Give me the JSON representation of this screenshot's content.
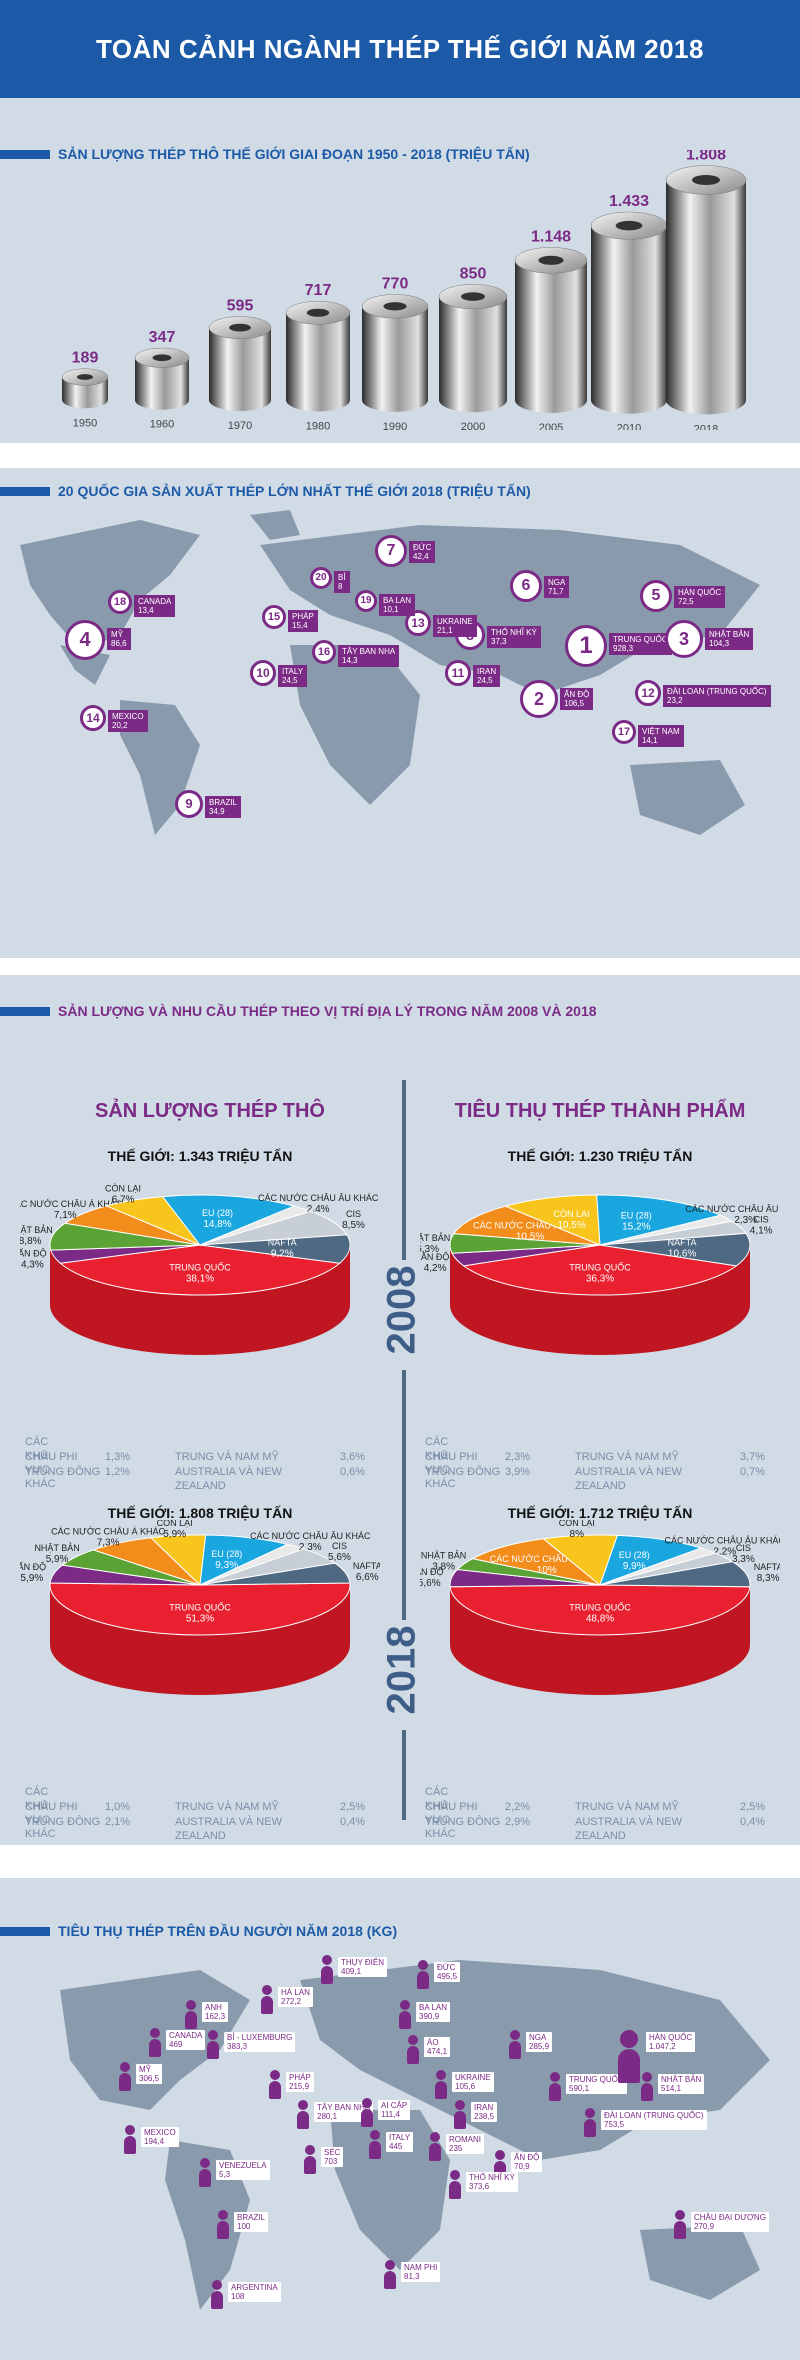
{
  "title": "TOÀN CẢNH NGÀNH THÉP THẾ GIỚI NĂM 2018",
  "section1": {
    "title": "SẢN LƯỢNG THÉP THÔ THẾ GIỚI GIAI ĐOẠN 1950 - 2018 (TRIỆU TẤN)",
    "chart_data": {
      "type": "bar",
      "categories": [
        "1950",
        "1960",
        "1970",
        "1980",
        "1990",
        "2000",
        "2005",
        "2010",
        "2018"
      ],
      "values": [
        189,
        347,
        595,
        717,
        770,
        850,
        1148,
        1433,
        1808
      ],
      "value_labels": [
        "189",
        "347",
        "595",
        "717",
        "770",
        "850",
        "1.148",
        "1.433",
        "1.808"
      ]
    }
  },
  "section2": {
    "title": "20 QUỐC GIA SẢN XUẤT THÉP LỚN NHẤT THẾ GIỚI 2018 (TRIỆU TẤN)",
    "countries": [
      {
        "rank": "1",
        "name": "TRUNG QUỐC",
        "value": "928,3"
      },
      {
        "rank": "2",
        "name": "ẤN ĐỘ",
        "value": "106,5"
      },
      {
        "rank": "3",
        "name": "NHẬT BẢN",
        "value": "104,3"
      },
      {
        "rank": "4",
        "name": "MỸ",
        "value": "86,6"
      },
      {
        "rank": "5",
        "name": "HÀN QUỐC",
        "value": "72,5"
      },
      {
        "rank": "6",
        "name": "NGA",
        "value": "71,7"
      },
      {
        "rank": "7",
        "name": "ĐỨC",
        "value": "42,4"
      },
      {
        "rank": "8",
        "name": "THỔ NHĨ KỲ",
        "value": "37,3"
      },
      {
        "rank": "9",
        "name": "BRAZIL",
        "value": "34,9"
      },
      {
        "rank": "10",
        "name": "ITALY",
        "value": "24,5"
      },
      {
        "rank": "11",
        "name": "IRAN",
        "value": "24,5"
      },
      {
        "rank": "12",
        "name": "ĐÀI LOAN (TRUNG QUỐC)",
        "value": "23,2"
      },
      {
        "rank": "13",
        "name": "UKRAINE",
        "value": "21,1"
      },
      {
        "rank": "14",
        "name": "MEXICO",
        "value": "20,2"
      },
      {
        "rank": "15",
        "name": "PHÁP",
        "value": "15,4"
      },
      {
        "rank": "16",
        "name": "TÂY BAN NHA",
        "value": "14,3"
      },
      {
        "rank": "17",
        "name": "VIỆT NAM",
        "value": "14,1"
      },
      {
        "rank": "18",
        "name": "CANADA",
        "value": "13,4"
      },
      {
        "rank": "19",
        "name": "BA LAN",
        "value": "10,1"
      },
      {
        "rank": "20",
        "name": "BỈ",
        "value": "8"
      }
    ]
  },
  "section3": {
    "title": "SẢN LƯỢNG VÀ NHU CẦU THÉP THEO VỊ TRÍ ĐỊA LÝ TRONG NĂM 2008 VÀ 2018",
    "left_heading": "SẢN LƯỢNG THÉP THÔ",
    "right_heading": "TIÊU THỤ THÉP THÀNH PHẨM",
    "year_2008": "2008",
    "year_2018": "2018",
    "chart_data": [
      {
        "type": "pie",
        "title": "THẾ GIỚI: 1.343 TRIỆU TẤN",
        "slices": [
          {
            "name": "TRUNG QUỐC",
            "value": 38.1,
            "label": "38,1%",
            "color": "#e8202f"
          },
          {
            "name": "ẤN ĐỘ",
            "value": 4.3,
            "label": "4,3%",
            "color": "#7b2a86"
          },
          {
            "name": "NHẬT BẢN",
            "value": 8.8,
            "label": "8,8%",
            "color": "#5aa334"
          },
          {
            "name": "CÁC NƯỚC CHÂU Á KHÁC",
            "value": 7.1,
            "label": "7,1%",
            "color": "#f28c1b"
          },
          {
            "name": "CÒN LẠI",
            "value": 6.7,
            "label": "6,7%",
            "color": "#f7c51b"
          },
          {
            "name": "EU (28)",
            "value": 14.8,
            "label": "14,8%",
            "color": "#1aa7e0"
          },
          {
            "name": "CÁC NƯỚC CHÂU ÂU KHÁC",
            "value": 2.4,
            "label": "2,4%",
            "color": "#e9e9e9"
          },
          {
            "name": "CIS",
            "value": 8.5,
            "label": "8,5%",
            "color": "#c7ced6"
          },
          {
            "name": "NAFTA",
            "value": 9.2,
            "label": "9,2%",
            "color": "#4f6983"
          }
        ],
        "other_regions": {
          "heading": "CÁC KHU VỰC KHÁC",
          "items": [
            [
              "CHÂU PHI",
              "1,3%"
            ],
            [
              "TRUNG ĐÔNG",
              "1,2%"
            ],
            [
              "TRUNG VÀ NAM MỸ",
              "3,6%"
            ],
            [
              "AUSTRALIA VÀ NEW ZEALAND",
              "0,6%"
            ]
          ]
        }
      },
      {
        "type": "pie",
        "title": "THẾ GIỚI: 1.230 TRIỆU TẤN",
        "slices": [
          {
            "name": "TRUNG QUỐC",
            "value": 36.3,
            "label": "36,3%",
            "color": "#e8202f"
          },
          {
            "name": "ẤN ĐỘ",
            "value": 4.2,
            "label": "4,2%",
            "color": "#7b2a86"
          },
          {
            "name": "NHẬT BẢN",
            "value": 6.3,
            "label": "6,3%",
            "color": "#5aa334"
          },
          {
            "name": "CÁC NƯỚC CHÂU Á KHÁC",
            "value": 10.5,
            "label": "10,5%",
            "color": "#f28c1b"
          },
          {
            "name": "CÒN LẠI",
            "value": 10.5,
            "label": "10,5%",
            "color": "#f7c51b"
          },
          {
            "name": "EU (28)",
            "value": 15.2,
            "label": "15,2%",
            "color": "#1aa7e0"
          },
          {
            "name": "CÁC NƯỚC CHÂU ÂU KHÁC",
            "value": 2.3,
            "label": "2,3%",
            "color": "#e9e9e9"
          },
          {
            "name": "CIS",
            "value": 4.1,
            "label": "4,1%",
            "color": "#c7ced6"
          },
          {
            "name": "NAFTA",
            "value": 10.6,
            "label": "10,6%",
            "color": "#4f6983"
          }
        ],
        "other_regions": {
          "heading": "CÁC KHU VỰC KHÁC",
          "items": [
            [
              "CHÂU PHI",
              "2,3%"
            ],
            [
              "TRUNG ĐÔNG",
              "3,9%"
            ],
            [
              "TRUNG VÀ NAM MỸ",
              "3,7%"
            ],
            [
              "AUSTRALIA VÀ NEW ZEALAND",
              "0,7%"
            ]
          ]
        }
      },
      {
        "type": "pie",
        "title": "THẾ GIỚI: 1.808 TRIỆU TẤN",
        "slices": [
          {
            "name": "TRUNG QUỐC",
            "value": 51.3,
            "label": "51,3%",
            "color": "#e8202f"
          },
          {
            "name": "ẤN ĐỘ",
            "value": 5.9,
            "label": "5,9%",
            "color": "#7b2a86"
          },
          {
            "name": "NHẬT BẢN",
            "value": 5.9,
            "label": "5,9%",
            "color": "#5aa334"
          },
          {
            "name": "CÁC NƯỚC CHÂU Á KHÁC",
            "value": 7.3,
            "label": "7,3%",
            "color": "#f28c1b"
          },
          {
            "name": "CÒN LẠI",
            "value": 5.9,
            "label": "5,9%",
            "color": "#f7c51b"
          },
          {
            "name": "EU (28)",
            "value": 9.3,
            "label": "9,3%",
            "color": "#1aa7e0"
          },
          {
            "name": "CÁC NƯỚC CHÂU ÂU KHÁC",
            "value": 2.3,
            "label": "2,3%",
            "color": "#e9e9e9"
          },
          {
            "name": "CIS",
            "value": 5.6,
            "label": "5,6%",
            "color": "#c7ced6"
          },
          {
            "name": "NAFTA",
            "value": 6.6,
            "label": "6,6%",
            "color": "#4f6983"
          }
        ],
        "other_regions": {
          "heading": "CÁC KHU VỰC KHÁC",
          "items": [
            [
              "CHÂU PHI",
              "1,0%"
            ],
            [
              "TRUNG ĐÔNG",
              "2,1%"
            ],
            [
              "TRUNG VÀ NAM MỸ",
              "2,5%"
            ],
            [
              "AUSTRALIA VÀ NEW ZEALAND",
              "0,4%"
            ]
          ]
        }
      },
      {
        "type": "pie",
        "title": "THẾ GIỚI: 1.712 TRIỆU TẤN",
        "slices": [
          {
            "name": "TRUNG QUỐC",
            "value": 48.8,
            "label": "48,8%",
            "color": "#e8202f"
          },
          {
            "name": "ẤN ĐỘ",
            "value": 5.6,
            "label": "5,6%",
            "color": "#7b2a86"
          },
          {
            "name": "NHẬT BẢN",
            "value": 3.8,
            "label": "3,8%",
            "color": "#5aa334"
          },
          {
            "name": "CÁC NƯỚC CHÂU Á KHÁC",
            "value": 10,
            "label": "10%",
            "color": "#f28c1b"
          },
          {
            "name": "CÒN LẠI",
            "value": 8,
            "label": "8%",
            "color": "#f7c51b"
          },
          {
            "name": "EU (28)",
            "value": 9.9,
            "label": "9,9%",
            "color": "#1aa7e0"
          },
          {
            "name": "CÁC NƯỚC CHÂU ÂU KHÁC",
            "value": 2.2,
            "label": "2,2%",
            "color": "#e9e9e9"
          },
          {
            "name": "CIS",
            "value": 3.3,
            "label": "3,3%",
            "color": "#c7ced6"
          },
          {
            "name": "NAFTA",
            "value": 8.3,
            "label": "8,3%",
            "color": "#4f6983"
          }
        ],
        "other_regions": {
          "heading": "CÁC KHU VỰC KHÁC",
          "items": [
            [
              "CHÂU PHI",
              "2,2%"
            ],
            [
              "TRUNG ĐÔNG",
              "2,9%"
            ],
            [
              "TRUNG VÀ NAM MỸ",
              "2,5%"
            ],
            [
              "AUSTRALIA VÀ NEW ZEALAND",
              "0,4%"
            ]
          ]
        }
      }
    ]
  },
  "section4": {
    "title": "TIÊU THỤ THÉP TRÊN ĐẦU NGƯỜI NĂM 2018 (KG)",
    "countries": [
      {
        "name": "THỤY ĐIỂN",
        "value": "409,1"
      },
      {
        "name": "ĐỨC",
        "value": "495,5"
      },
      {
        "name": "HÀ LAN",
        "value": "272,2"
      },
      {
        "name": "ANH",
        "value": "162,3"
      },
      {
        "name": "BA LAN",
        "value": "390,9"
      },
      {
        "name": "CANADA",
        "value": "469"
      },
      {
        "name": "BỈ - LUXEMBURG",
        "value": "383,3"
      },
      {
        "name": "ÁO",
        "value": "474,1"
      },
      {
        "name": "NGA",
        "value": "285,9"
      },
      {
        "name": "MỸ",
        "value": "306,5"
      },
      {
        "name": "PHÁP",
        "value": "215,9"
      },
      {
        "name": "UKRAINE",
        "value": "105,6"
      },
      {
        "name": "TRUNG QUỐC",
        "value": "590,1"
      },
      {
        "name": "HÀN QUỐC",
        "value": "1.047,2"
      },
      {
        "name": "NHẬT BẢN",
        "value": "514,1"
      },
      {
        "name": "TÂY BAN NHA",
        "value": "280,1"
      },
      {
        "name": "AI CẬP",
        "value": "111,4"
      },
      {
        "name": "IRAN",
        "value": "238,5"
      },
      {
        "name": "ĐÀI LOAN (TRUNG QUỐC)",
        "value": "753,5"
      },
      {
        "name": "MEXICO",
        "value": "194,4"
      },
      {
        "name": "ITALY",
        "value": "445"
      },
      {
        "name": "ROMANI",
        "value": "235"
      },
      {
        "name": "VENEZUELA",
        "value": "5,3"
      },
      {
        "name": "SÉC",
        "value": "703"
      },
      {
        "name": "ẤN ĐỘ",
        "value": "70,9"
      },
      {
        "name": "THỔ NHĨ KỲ",
        "value": "373,6"
      },
      {
        "name": "BRAZIL",
        "value": "100"
      },
      {
        "name": "CHÂU ĐẠI DƯƠNG",
        "value": "270,9"
      },
      {
        "name": "NAM PHI",
        "value": "81,3"
      },
      {
        "name": "ARGENTINA",
        "value": "108"
      }
    ]
  }
}
